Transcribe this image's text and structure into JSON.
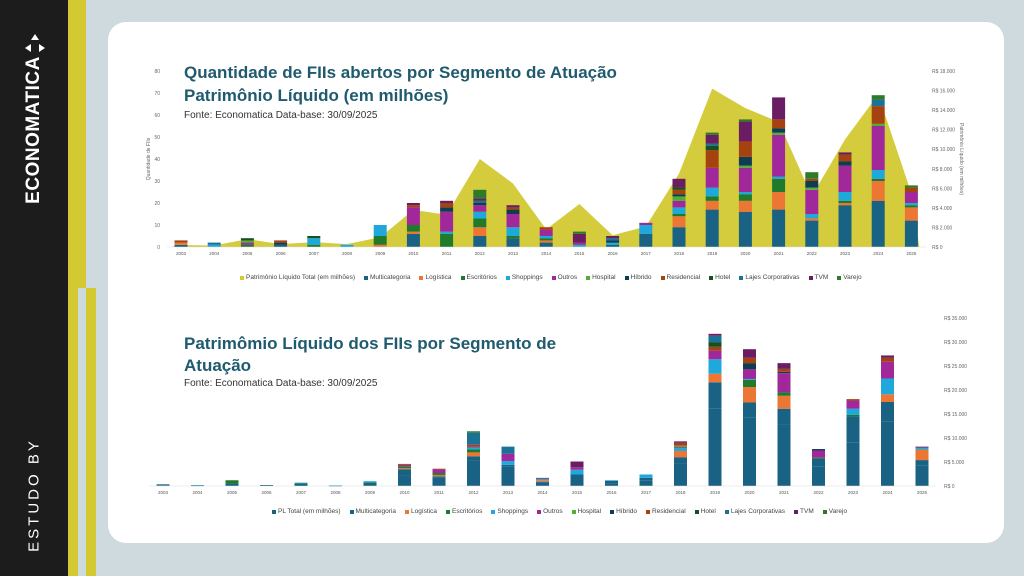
{
  "sidebar": {
    "brand": "ECONOMATICA",
    "study_by": "ESTUDO BY"
  },
  "colors": {
    "Multicategoria": "#1a6283",
    "Logística": "#ec7634",
    "Escritórios": "#1f7a2c",
    "Shoppings": "#1ea8db",
    "Outros": "#a1289a",
    "Hospital": "#4fae38",
    "Híbrido": "#0f3c52",
    "Residencial": "#a6420f",
    "Hotel": "#174f1f",
    "Lajes Corporativas": "#1b7196",
    "TVM": "#6b1d63",
    "Varejo": "#2f7a2a",
    "PL": "#d2c933",
    "PL Total (em milhões)": "#1a6283"
  },
  "chart_data": [
    {
      "type": "bar",
      "stacked": true,
      "title": "Quantidade de FIIs abertos por Segmento de Atuação",
      "subtitle": "Patrimônio Líquido (em milhões)",
      "source": "Fonte: Economatica Data-base: 30/09/2025",
      "ylabel": "Quantidade de FIIs",
      "y2label": "Patrimônio Líquido (em milhões)",
      "ylim": [
        0,
        80
      ],
      "yticks": [
        "0",
        "10",
        "20",
        "30",
        "40",
        "50",
        "60",
        "70",
        "80"
      ],
      "y2lim": [
        0,
        18000
      ],
      "y2ticks": [
        "R$ 0",
        "R$ 2.000",
        "R$ 4.000",
        "R$ 6.000",
        "R$ 8.000",
        "R$ 10.000",
        "R$ 12.000",
        "R$ 14.000",
        "R$ 16.000",
        "R$ 18.000"
      ],
      "categories": [
        "2003",
        "2004",
        "2005",
        "2006",
        "2007",
        "2008",
        "2009",
        "2010",
        "2011",
        "2012",
        "2013",
        "2014",
        "2015",
        "2016",
        "2017",
        "2018",
        "2019",
        "2020",
        "2021",
        "2022",
        "2023",
        "2024",
        "2025"
      ],
      "legend": [
        "Patrimônio Líquido Total (em milhões)",
        "Multicategoria",
        "Logística",
        "Escritórios",
        "Shoppings",
        "Outros",
        "Hospital",
        "Híbrido",
        "Residencial",
        "Hotel",
        "Lajes Corporativas",
        "TVM",
        "Varejo"
      ],
      "area_series": {
        "name": "Patrimônio Líquido Total (em milhões)",
        "values": [
          200,
          150,
          800,
          300,
          500,
          300,
          1000,
          3800,
          3300,
          9000,
          6500,
          1800,
          4400,
          1200,
          2100,
          7500,
          16200,
          14200,
          12800,
          5200,
          11000,
          15600,
          5500
        ]
      },
      "series": [
        {
          "name": "Multicategoria",
          "values": [
            1,
            0,
            0,
            1,
            0,
            0,
            0,
            6,
            0,
            5,
            4,
            2,
            0,
            1,
            6,
            9,
            17,
            16,
            17,
            12,
            19,
            21,
            12
          ]
        },
        {
          "name": "Logística",
          "values": [
            1,
            0,
            0,
            0,
            0,
            0,
            1,
            1,
            0,
            4,
            0,
            1,
            0,
            0,
            0,
            5,
            4,
            5,
            8,
            1,
            1,
            9,
            6
          ]
        },
        {
          "name": "Escritórios",
          "values": [
            0,
            0,
            1,
            0,
            1,
            0,
            4,
            3,
            6,
            4,
            1,
            1,
            0,
            0,
            0,
            1,
            2,
            3,
            6,
            0,
            1,
            1,
            1
          ]
        },
        {
          "name": "Shoppings",
          "values": [
            0,
            1,
            0,
            0,
            3,
            1,
            5,
            0,
            1,
            3,
            4,
            1,
            1,
            1,
            4,
            3,
            4,
            1,
            1,
            2,
            4,
            4,
            1
          ]
        },
        {
          "name": "Outros",
          "values": [
            0,
            0,
            1,
            0,
            0,
            0,
            0,
            8,
            9,
            3,
            6,
            3,
            1,
            0,
            1,
            3,
            9,
            11,
            19,
            11,
            12,
            20,
            5
          ]
        },
        {
          "name": "Hospital",
          "values": [
            0,
            0,
            1,
            0,
            0,
            0,
            0,
            0,
            0,
            0,
            0,
            0,
            0,
            0,
            0,
            2,
            0,
            1,
            1,
            1,
            0,
            1,
            0
          ]
        },
        {
          "name": "Híbrido",
          "values": [
            0,
            0,
            0,
            1,
            0,
            0,
            0,
            0,
            2,
            1,
            2,
            0,
            0,
            1,
            0,
            1,
            0,
            4,
            2,
            3,
            2,
            0,
            0
          ]
        },
        {
          "name": "Residencial",
          "values": [
            1,
            0,
            0,
            1,
            0,
            0,
            0,
            1,
            2,
            0,
            1,
            1,
            0,
            0,
            0,
            2,
            8,
            7,
            4,
            1,
            3,
            8,
            2
          ]
        },
        {
          "name": "Hotel",
          "values": [
            0,
            0,
            1,
            0,
            1,
            0,
            0,
            0,
            0,
            0,
            0,
            0,
            0,
            0,
            0,
            1,
            2,
            0,
            0,
            0,
            0,
            0,
            0
          ]
        },
        {
          "name": "Lajes Corporativas",
          "values": [
            0,
            1,
            0,
            0,
            0,
            0,
            0,
            0,
            0,
            1,
            0,
            0,
            0,
            1,
            0,
            0,
            1,
            0,
            0,
            0,
            0,
            3,
            0
          ]
        },
        {
          "name": "TVM",
          "values": [
            0,
            0,
            0,
            0,
            0,
            0,
            0,
            1,
            1,
            1,
            1,
            0,
            4,
            1,
            0,
            4,
            4,
            9,
            10,
            0,
            1,
            0,
            0
          ]
        },
        {
          "name": "Varejo",
          "values": [
            0,
            0,
            0,
            0,
            0,
            0,
            0,
            0,
            0,
            4,
            0,
            0,
            1,
            0,
            0,
            0,
            1,
            1,
            0,
            3,
            0,
            2,
            1
          ]
        }
      ]
    },
    {
      "type": "bar",
      "stacked": true,
      "title": "Patrimômio Líquido dos FIIs por Segmento de Atuação",
      "source": "Fonte: Economatica Data-base: 30/09/2025",
      "ylim": [
        0,
        35000
      ],
      "y2ticks": [
        "R$ 0",
        "R$ 5.000",
        "R$ 10.000",
        "R$ 15.000",
        "R$ 20.000",
        "R$ 25.000",
        "R$ 30.000",
        "R$ 35.000"
      ],
      "categories": [
        "2003",
        "2004",
        "2005",
        "2006",
        "2007",
        "2008",
        "2009",
        "2010",
        "2011",
        "2012",
        "2013",
        "2014",
        "2015",
        "2016",
        "2017",
        "2018",
        "2019",
        "2020",
        "2021",
        "2022",
        "2023",
        "2024",
        "2025"
      ],
      "legend": [
        "PL Total (em milhões)",
        "Multicategoria",
        "Logística",
        "Escritórios",
        "Shoppings",
        "Outros",
        "Hospital",
        "Híbrido",
        "Residencial",
        "Hotel",
        "Lajes Corporativas",
        "TVM",
        "Varejo"
      ],
      "series": [
        {
          "name": "PL Total (em milhões)",
          "values": [
            150,
            100,
            500,
            200,
            500,
            50,
            700,
            2200,
            1700,
            5400,
            4000,
            700,
            2400,
            600,
            1200,
            4600,
            16200,
            14200,
            12800,
            4000,
            9000,
            13500,
            4200
          ]
        },
        {
          "name": "Multicategoria",
          "values": [
            200,
            0,
            0,
            0,
            0,
            0,
            0,
            1300,
            300,
            800,
            400,
            200,
            0,
            500,
            500,
            1400,
            5400,
            3200,
            3300,
            1700,
            5500,
            4000,
            1200
          ]
        },
        {
          "name": "Logística",
          "values": [
            0,
            0,
            0,
            0,
            0,
            0,
            0,
            200,
            300,
            800,
            0,
            300,
            0,
            0,
            0,
            1300,
            1800,
            3200,
            2700,
            0,
            0,
            1600,
            2200
          ]
        },
        {
          "name": "Escritórios",
          "values": [
            0,
            50,
            700,
            0,
            100,
            0,
            100,
            400,
            400,
            600,
            0,
            0,
            0,
            0,
            0,
            0,
            0,
            1500,
            700,
            200,
            300,
            0,
            0
          ]
        },
        {
          "name": "Shoppings",
          "values": [
            0,
            50,
            0,
            0,
            100,
            100,
            200,
            0,
            0,
            400,
            800,
            300,
            1000,
            100,
            700,
            600,
            3000,
            200,
            0,
            0,
            1300,
            3300,
            400
          ]
        },
        {
          "name": "Outros",
          "values": [
            0,
            0,
            0,
            0,
            0,
            0,
            0,
            300,
            800,
            200,
            1500,
            100,
            500,
            0,
            0,
            200,
            1800,
            2000,
            4000,
            1500,
            1700,
            3500,
            0
          ]
        },
        {
          "name": "Hospital",
          "values": [
            0,
            0,
            0,
            0,
            0,
            0,
            0,
            0,
            0,
            0,
            0,
            0,
            0,
            0,
            0,
            300,
            0,
            0,
            0,
            0,
            0,
            0,
            0
          ]
        },
        {
          "name": "Híbrido",
          "values": [
            0,
            0,
            0,
            0,
            0,
            0,
            0,
            0,
            0,
            0,
            0,
            0,
            0,
            0,
            0,
            0,
            0,
            1300,
            300,
            300,
            0,
            0,
            0
          ]
        },
        {
          "name": "Residencial",
          "values": [
            0,
            0,
            0,
            0,
            0,
            0,
            0,
            200,
            100,
            400,
            0,
            100,
            0,
            0,
            0,
            600,
            800,
            1100,
            600,
            0,
            300,
            800,
            0
          ]
        },
        {
          "name": "Hotel",
          "values": [
            0,
            0,
            0,
            0,
            0,
            0,
            0,
            0,
            0,
            0,
            0,
            0,
            0,
            0,
            0,
            0,
            900,
            0,
            0,
            0,
            0,
            0,
            0
          ]
        },
        {
          "name": "Lajes Corporativas",
          "values": [
            0,
            0,
            0,
            0,
            0,
            0,
            0,
            0,
            0,
            2500,
            1500,
            0,
            0,
            0,
            0,
            0,
            1400,
            0,
            0,
            0,
            0,
            0,
            0
          ]
        },
        {
          "name": "TVM",
          "values": [
            0,
            0,
            0,
            0,
            0,
            0,
            0,
            0,
            0,
            0,
            0,
            0,
            1200,
            0,
            0,
            300,
            400,
            1800,
            1200,
            0,
            0,
            500,
            200
          ]
        },
        {
          "name": "Varejo",
          "values": [
            0,
            0,
            0,
            0,
            0,
            0,
            0,
            0,
            0,
            300,
            0,
            0,
            0,
            0,
            0,
            0,
            0,
            0,
            0,
            0,
            0,
            0,
            0
          ]
        }
      ]
    }
  ]
}
